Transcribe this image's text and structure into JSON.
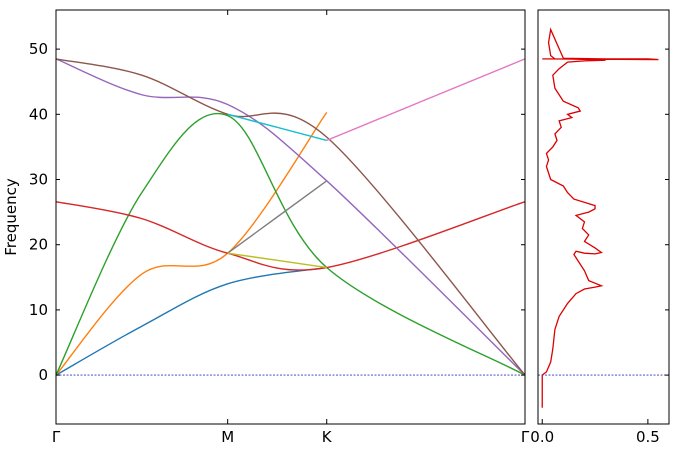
{
  "chart_data": [
    {
      "type": "line",
      "title": "",
      "ylabel": "Frequency",
      "xlabel": "",
      "x_ticks": [
        "Γ",
        "M",
        "K",
        "Γ"
      ],
      "x_tick_positions": [
        0,
        1,
        1.577,
        2.732
      ],
      "y_ticks": [
        0,
        10,
        20,
        30,
        40,
        50
      ],
      "ylim": [
        -7.5,
        56
      ],
      "xlim": [
        0,
        2.732
      ],
      "zero_line": {
        "y": 0,
        "style": "dashed",
        "color": "#3333bb"
      },
      "series": [
        {
          "color": "#1f77b4",
          "points": [
            [
              0,
              0
            ],
            [
              0.5,
              7.5
            ],
            [
              1,
              14
            ],
            [
              1.577,
              16.5
            ]
          ]
        },
        {
          "color": "#ff7f0e",
          "points": [
            [
              0,
              0
            ],
            [
              0.5,
              15.5
            ],
            [
              1,
              18.7
            ],
            [
              1.577,
              40.3
            ]
          ]
        },
        {
          "color": "#2ca02c",
          "points": [
            [
              0,
              0
            ],
            [
              0.5,
              28
            ],
            [
              1,
              39.8
            ],
            [
              1.577,
              16.5
            ],
            [
              2.732,
              0
            ]
          ]
        },
        {
          "color": "#d62728",
          "points": [
            [
              0,
              26.6
            ],
            [
              0.5,
              24
            ],
            [
              1,
              18.7
            ],
            [
              1.577,
              16.5
            ],
            [
              2.732,
              26.6
            ]
          ]
        },
        {
          "color": "#9467bd",
          "points": [
            [
              0,
              48.5
            ],
            [
              0.5,
              43
            ],
            [
              1,
              41.5
            ],
            [
              1.577,
              29.8
            ],
            [
              2.732,
              0
            ]
          ]
        },
        {
          "color": "#8c564b",
          "points": [
            [
              0,
              48.5
            ],
            [
              0.5,
              46
            ],
            [
              1,
              40
            ],
            [
              1.577,
              36.5
            ],
            [
              2.732,
              0
            ]
          ]
        },
        {
          "color": "#e377c2",
          "points": [
            [
              1.577,
              36
            ],
            [
              2.732,
              48.5
            ]
          ]
        },
        {
          "color": "#7f7f7f",
          "points": [
            [
              1,
              18.7
            ],
            [
              1.577,
              29.8
            ]
          ]
        },
        {
          "color": "#bcbd22",
          "points": [
            [
              1,
              18.7
            ],
            [
              1.577,
              16.5
            ]
          ]
        },
        {
          "color": "#17becf",
          "points": [
            [
              1,
              40
            ],
            [
              1.577,
              36
            ]
          ]
        }
      ]
    },
    {
      "type": "line",
      "title": "",
      "xlabel": "",
      "ylabel": "",
      "x_ticks": [
        0.0,
        0.5
      ],
      "x_tick_labels": [
        "0.0",
        "0.5"
      ],
      "xlim": [
        -0.02,
        0.6
      ],
      "ylim": [
        -7.5,
        56
      ],
      "color": "#dd0000",
      "x": [
        0.0,
        0.0,
        0.02,
        0.04,
        0.05,
        0.06,
        0.08,
        0.12,
        0.16,
        0.2,
        0.25,
        0.28,
        0.22,
        0.2,
        0.17,
        0.15,
        0.16,
        0.2,
        0.25,
        0.28,
        0.25,
        0.2,
        0.22,
        0.19,
        0.2,
        0.16,
        0.22,
        0.25,
        0.25,
        0.15,
        0.12,
        0.1,
        0.04,
        0.03,
        0.02,
        0.03,
        0.02,
        0.05,
        0.07,
        0.06,
        0.09,
        0.08,
        0.14,
        0.12,
        0.18,
        0.17,
        0.1,
        0.06,
        0.05,
        0.08,
        0.12,
        0.2,
        0.3,
        0.26,
        0.06,
        0.04,
        0.03,
        0.04,
        0.1,
        0.3,
        0.5,
        0.55,
        0.0
      ],
      "y": [
        -5,
        0,
        0.5,
        2,
        4,
        7,
        9,
        11,
        12.5,
        13.2,
        13.5,
        13.7,
        14.5,
        16,
        17.5,
        18.5,
        19,
        18.7,
        18.6,
        18.8,
        19.5,
        20.5,
        21.5,
        22.5,
        23.5,
        24.5,
        25,
        25.5,
        26,
        27,
        28,
        29,
        30,
        31,
        32,
        33,
        34,
        35,
        36,
        37,
        38,
        39,
        39.5,
        40,
        40.5,
        41,
        42,
        44,
        46,
        47,
        48,
        48.2,
        48.3,
        48.4,
        48.5,
        49,
        51,
        53,
        48.6,
        48.5,
        48.5,
        48.4,
        48.5
      ]
    }
  ]
}
